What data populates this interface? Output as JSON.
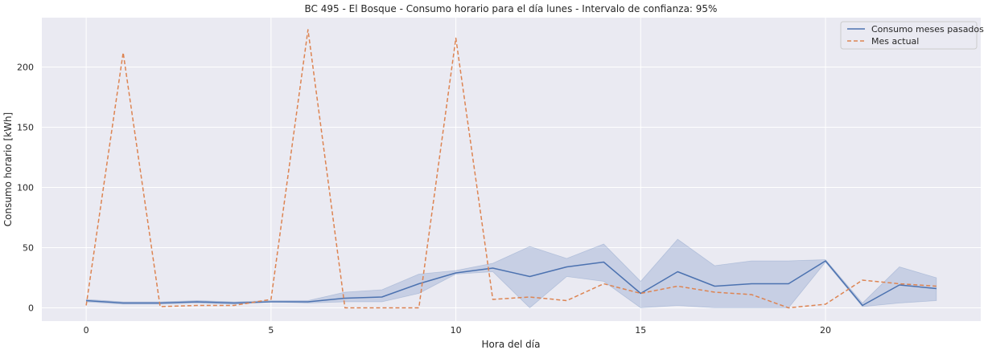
{
  "chart_data": {
    "type": "line",
    "title": "BC 495 - El Bosque - Consumo horario para el día lunes - Intervalo de confianza: 95%",
    "xlabel": "Hora del día",
    "ylabel": "Consumo horario [kWh]",
    "xlim": [
      -1.2,
      24.2
    ],
    "ylim": [
      -11,
      241
    ],
    "xticks": [
      0,
      5,
      10,
      15,
      20
    ],
    "yticks": [
      0,
      50,
      100,
      150,
      200
    ],
    "grid": true,
    "legend_position": "top-right",
    "x": [
      0,
      1,
      2,
      3,
      4,
      5,
      6,
      7,
      8,
      9,
      10,
      11,
      12,
      13,
      14,
      15,
      16,
      17,
      18,
      19,
      20,
      21,
      22,
      23
    ],
    "series": [
      {
        "name": "Consumo meses pasados",
        "style": "solid",
        "color": "#4c72b0",
        "values": [
          6,
          4,
          4,
          5,
          4,
          5,
          5,
          8,
          9,
          20,
          29,
          33,
          26,
          34,
          38,
          12,
          30,
          18,
          20,
          20,
          39,
          2,
          19,
          16
        ],
        "ci_lower": [
          5,
          3,
          3,
          4,
          3,
          5,
          4,
          5,
          5,
          12,
          28,
          30,
          0,
          26,
          22,
          0,
          2,
          0,
          0,
          0,
          38,
          1,
          4,
          6
        ],
        "ci_upper": [
          7,
          5,
          5,
          6,
          5,
          6,
          6,
          13,
          15,
          28,
          31,
          37,
          51,
          41,
          53,
          22,
          57,
          35,
          39,
          39,
          40,
          4,
          34,
          25
        ]
      },
      {
        "name": "Mes actual",
        "style": "dashed",
        "color": "#dd8452",
        "values": [
          2,
          212,
          1,
          2,
          2,
          7,
          231,
          0,
          0,
          0,
          224,
          7,
          9,
          6,
          20,
          12,
          18,
          13,
          11,
          0,
          3,
          23,
          20,
          18
        ]
      }
    ]
  }
}
